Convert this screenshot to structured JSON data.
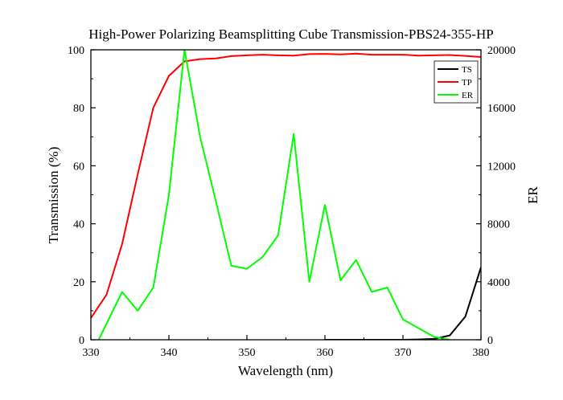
{
  "chart_data": {
    "type": "line",
    "title": "High-Power Polarizing Beamsplitting Cube Transmission-PBS24-355-HP",
    "xlabel": "Wavelength (nm)",
    "ylabel": "Transmission (%)",
    "y2label": "ER",
    "xlim": [
      330,
      380
    ],
    "ylim": [
      0,
      100
    ],
    "y2lim": [
      0,
      20000
    ],
    "xticks": [
      330,
      340,
      350,
      360,
      370,
      380
    ],
    "yticks": [
      0,
      20,
      40,
      60,
      80,
      100
    ],
    "y2ticks": [
      0,
      4000,
      8000,
      12000,
      16000,
      20000
    ],
    "legend_position": "top-right",
    "grid": false,
    "series": [
      {
        "name": "TS",
        "axis": "left",
        "color": "#000000",
        "x": [
          360,
          362,
          364,
          366,
          368,
          370,
          372,
          374,
          376,
          378,
          380
        ],
        "y": [
          0,
          0,
          0,
          0,
          0,
          0,
          0.1,
          0.3,
          1.5,
          8,
          25
        ]
      },
      {
        "name": "TP",
        "axis": "left",
        "color": "#ff0000",
        "x": [
          330,
          332,
          334,
          336,
          338,
          340,
          342,
          344,
          346,
          348,
          350,
          352,
          354,
          356,
          358,
          360,
          362,
          364,
          366,
          368,
          370,
          372,
          374,
          376,
          378,
          380
        ],
        "y": [
          7.5,
          15.5,
          33,
          57,
          80,
          91,
          96,
          96.8,
          97,
          97.8,
          98.1,
          98.3,
          98.1,
          98,
          98.5,
          98.6,
          98.4,
          98.7,
          98.3,
          98.3,
          98.3,
          98,
          98.1,
          98.2,
          97.9,
          97.5
        ]
      },
      {
        "name": "ER",
        "axis": "right",
        "color": "#00ff00",
        "x": [
          331,
          334,
          336,
          338,
          340,
          342,
          344,
          346,
          348,
          350,
          352,
          354,
          356,
          358,
          360,
          362,
          364,
          366,
          368,
          370,
          372,
          374,
          376
        ],
        "y": [
          0,
          3300,
          2000,
          3600,
          10000,
          20000,
          14000,
          9600,
          5100,
          4900,
          5700,
          7200,
          14200,
          4000,
          9300,
          4100,
          5500,
          3300,
          3600,
          1400,
          800,
          200,
          0
        ]
      }
    ]
  }
}
